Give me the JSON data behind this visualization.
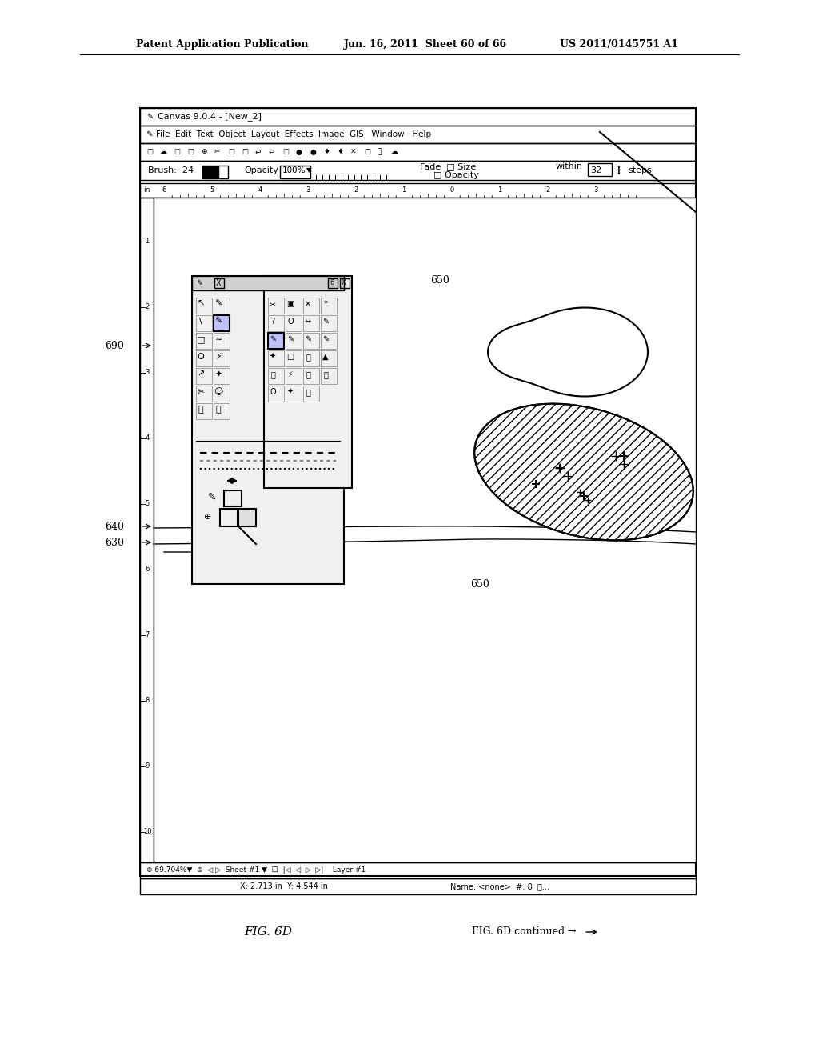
{
  "bg_color": "#ffffff",
  "header_text1": "Patent Application Publication",
  "header_text2": "Jun. 16, 2011  Sheet 60 of 66",
  "header_text3": "US 2011/0145751 A1",
  "title_text": "Canvas 9.0.4 - [New_2]",
  "menu_text": "ç File  Edit  Text  Object  Layout  Effects  Image  GIS   Window   Help",
  "brush_label": "Brush:  24",
  "opacity_label": "Opacity 100%",
  "fade_label": "Fade  □ Size",
  "opacity2_label": "□ Opacity",
  "within_label": "within  32      steps",
  "ruler_labels": [
    "-6",
    "-5",
    "-4",
    "-3",
    "-2",
    "-1",
    "0",
    "1",
    "2",
    "3"
  ],
  "label_690": "690",
  "label_640": "640",
  "label_630": "630",
  "label_650a": "650",
  "label_650b": "650",
  "fig_label": "FIG. 6D",
  "fig_continued": "FIG. 6D continued →"
}
